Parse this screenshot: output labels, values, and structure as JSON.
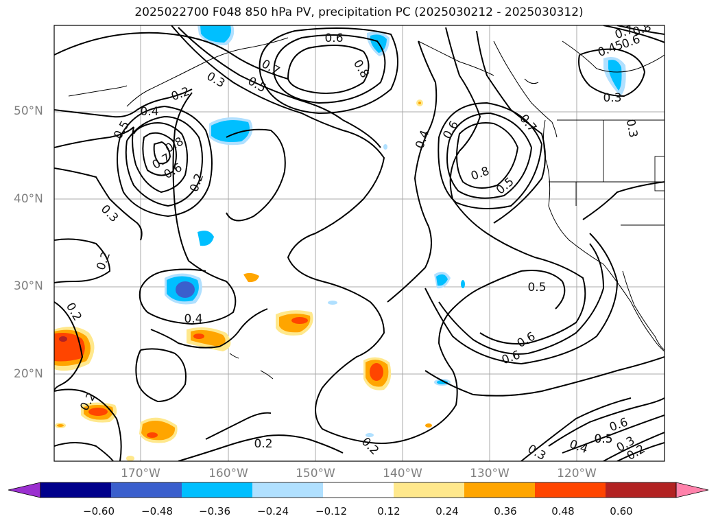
{
  "title": "2025022700 F048 850 hPa PV, precipitation PC (2025030212 - 2025030312)",
  "lat_labels": [
    "50°N",
    "40°N",
    "30°N",
    "20°N"
  ],
  "lon_labels": [
    "170°W",
    "160°W",
    "150°W",
    "140°W",
    "130°W",
    "120°W"
  ],
  "colorbar": {
    "ticks": [
      "−0.60",
      "−0.48",
      "−0.36",
      "−0.24",
      "−0.12",
      "0.12",
      "0.24",
      "0.36",
      "0.48",
      "0.60"
    ],
    "colors": [
      "#9b30d0",
      "#00008b",
      "#3a5fcd",
      "#00bfff",
      "#b0e0ff",
      "#ffffff",
      "#ffe88c",
      "#ffa500",
      "#ff4500",
      "#b22222",
      "#ff82ab"
    ]
  },
  "contour_labels": [
    "0.6",
    "0.8",
    "0.7",
    "0.5",
    "0.3",
    "0.2",
    "0.4",
    "0.5",
    "0.8",
    "0.7",
    "0.6",
    "0.2",
    "0.3",
    "0.2",
    "0.4",
    "0.2",
    "0.2",
    "0.4",
    "0.6",
    "0.8",
    "0.5",
    "0.6",
    "0.7",
    "0.5",
    "0.6",
    "0.5",
    "0.2",
    "0.2",
    "0.3",
    "0.4",
    "0.5",
    "0.6",
    "0.3",
    "0.2",
    "0.3",
    "0.45",
    "0.6",
    "0.7",
    "0.3",
    "0.8"
  ],
  "map_colors": {
    "pos_light": "#ffe88c",
    "pos_mid": "#ffa500",
    "pos_high": "#ff4500",
    "pos_top": "#b22222",
    "neg_light": "#b0e0ff",
    "neg_mid": "#00bfff",
    "neg_high": "#3a5fcd",
    "grid": "#aaaaaa"
  }
}
